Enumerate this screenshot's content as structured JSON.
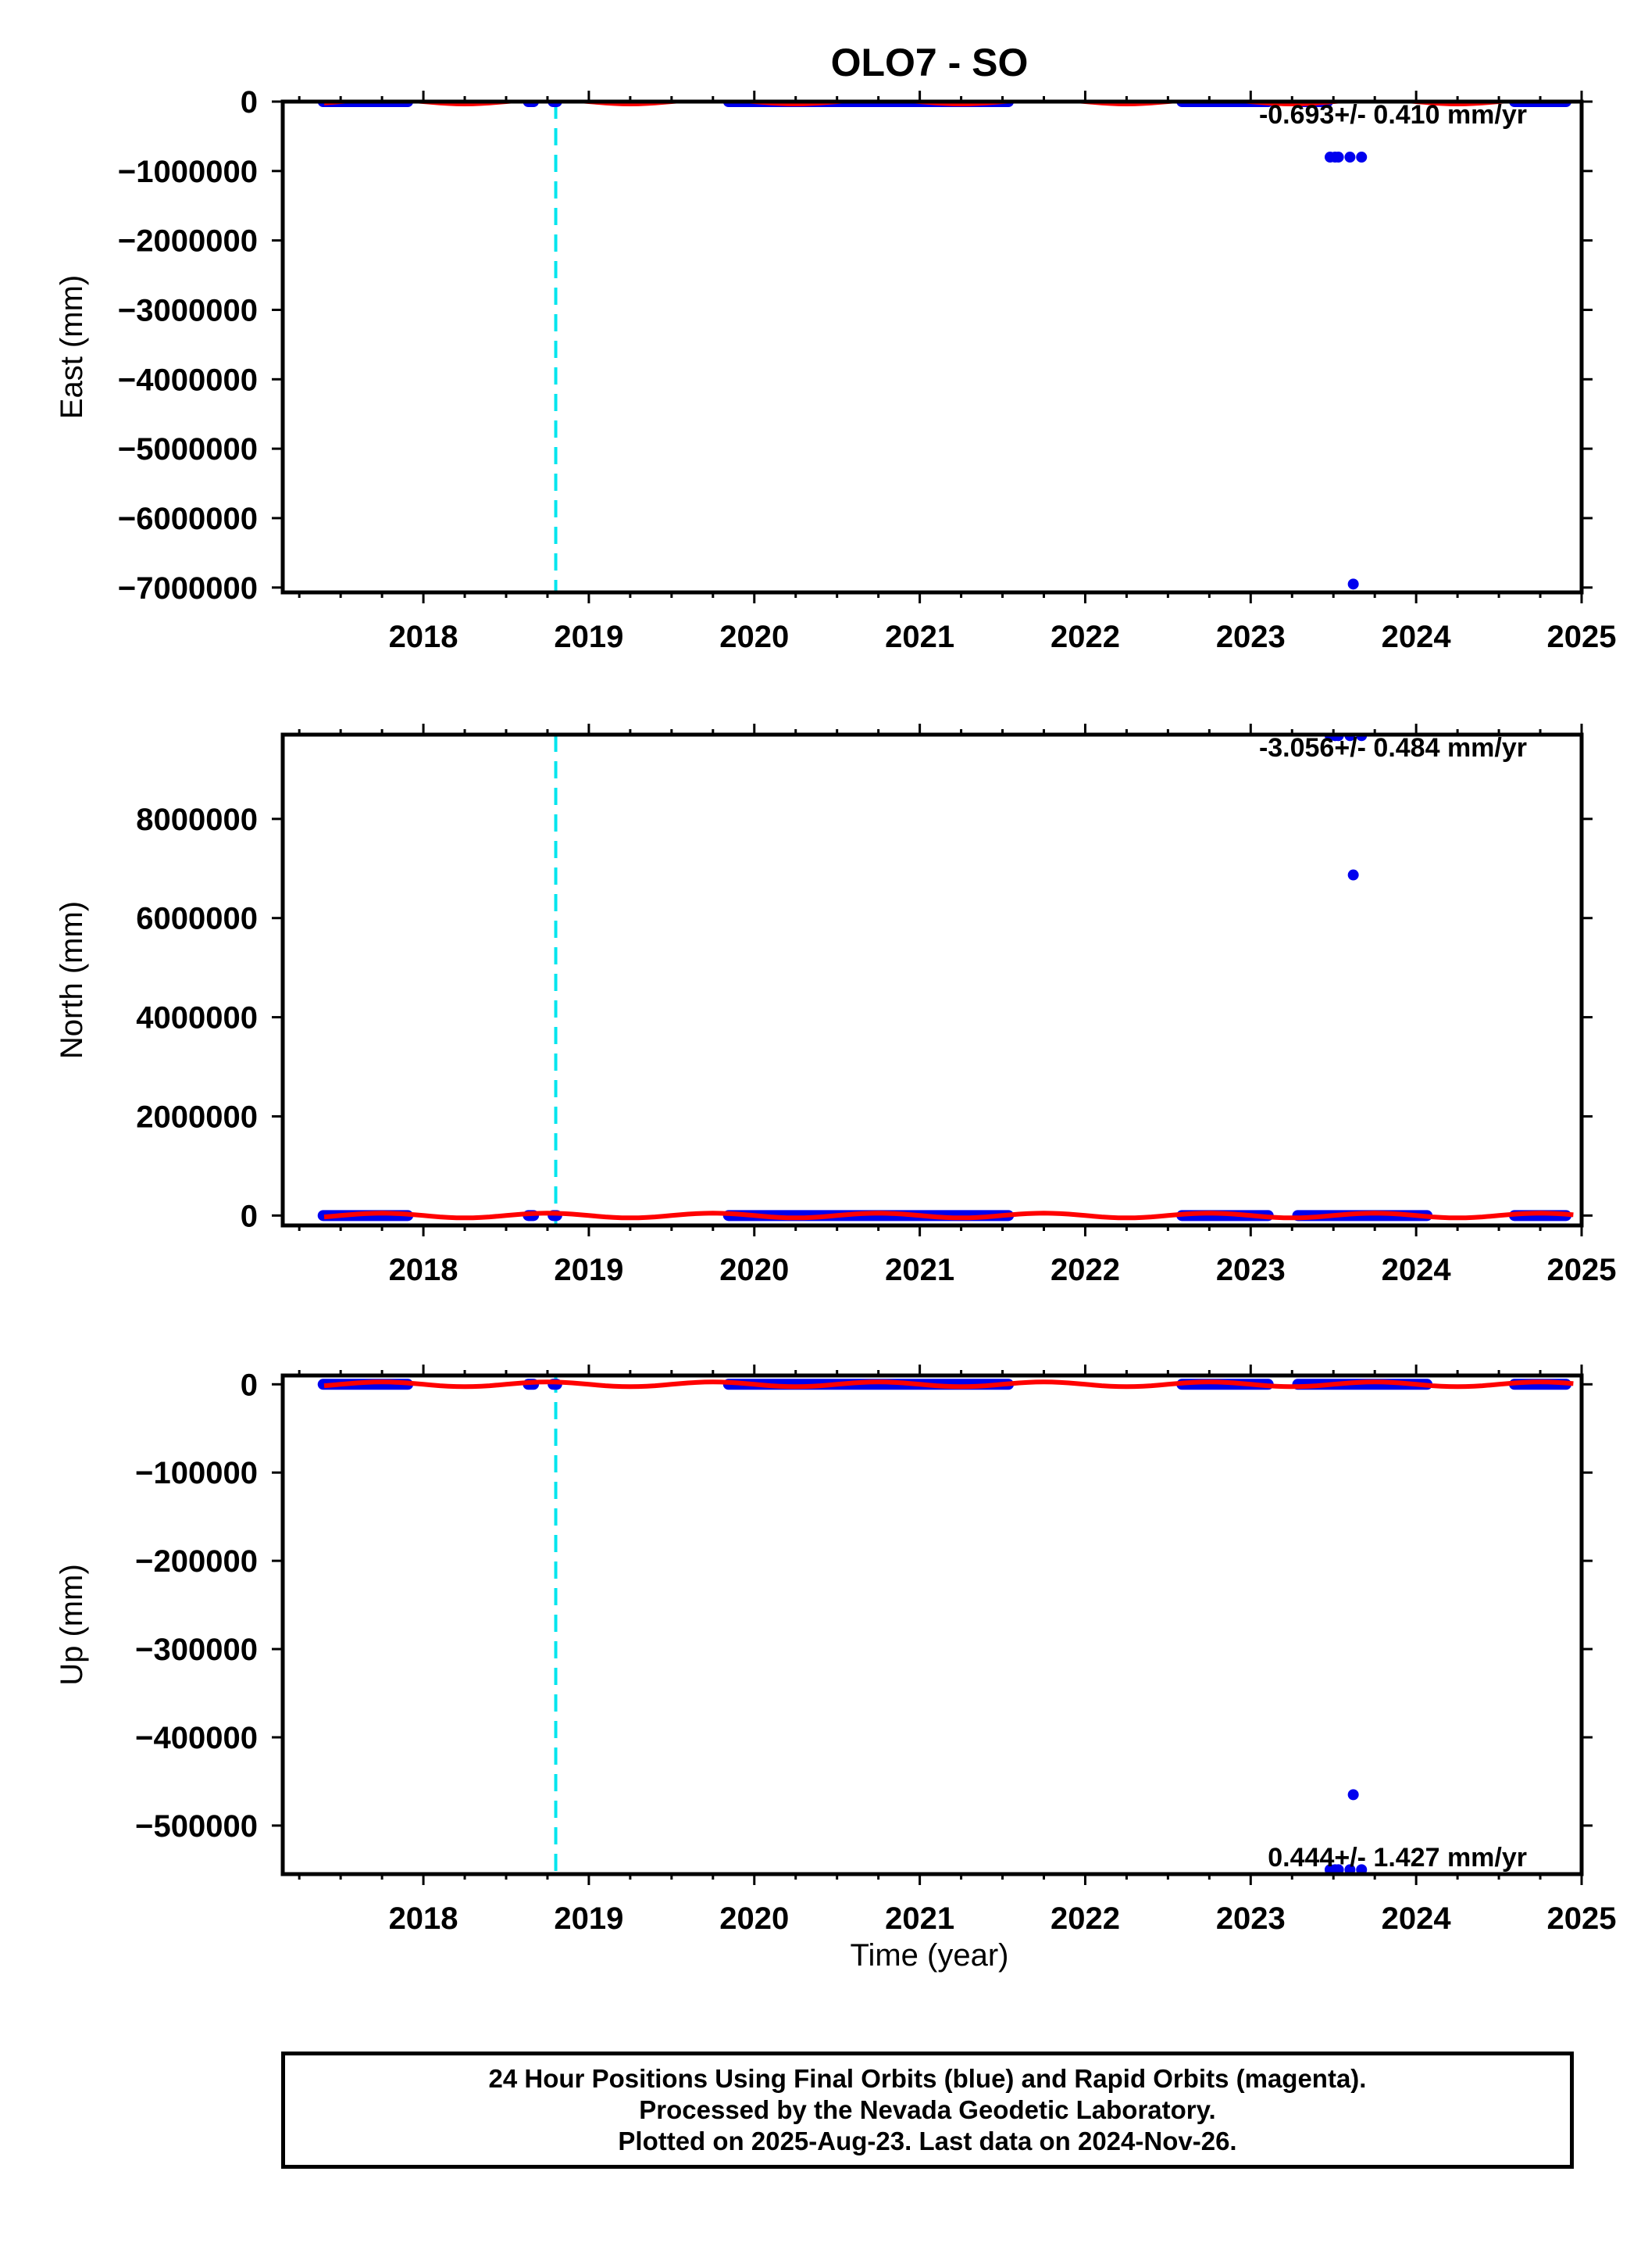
{
  "chart_data": {
    "type": "scatter",
    "title": "OLO7 - SO",
    "x_range": [
      2017.15,
      2025.0
    ],
    "x_ticks": [
      2018,
      2019,
      2020,
      2021,
      2022,
      2023,
      2024,
      2025
    ],
    "xlabel": "Time (year)",
    "event_line_x": 2018.8,
    "colors": {
      "final_orbits": "#0000ee",
      "rapid_orbits": "#ff00ff",
      "model": "#ff0000",
      "event": "#00e5ee"
    },
    "panels": [
      {
        "component": "East",
        "ylabel": "East (mm)",
        "ylim": [
          -7070000,
          0
        ],
        "y_ticks": [
          0,
          -1000000,
          -2000000,
          -3000000,
          -4000000,
          -5000000,
          -6000000,
          -7000000
        ],
        "y_tick_labels": [
          "0",
          "−1000000",
          "−2000000",
          "−3000000",
          "−4000000",
          "−5000000",
          "−6000000",
          "−7000000"
        ],
        "rate_text": "-0.693+/- 0.410 mm/yr",
        "data_segments": [
          [
            2017.38,
            2017.92
          ],
          [
            2018.62,
            2018.68
          ],
          [
            2018.77,
            2018.82
          ],
          [
            2019.83,
            2021.55
          ],
          [
            2022.57,
            2023.12
          ],
          [
            2023.27,
            2023.48
          ],
          [
            2024.58,
            2024.92
          ]
        ],
        "outliers": [
          {
            "x": 2023.48,
            "y": -800000
          },
          {
            "x": 2023.51,
            "y": -800000
          },
          {
            "x": 2023.53,
            "y": -800000
          },
          {
            "x": 2023.6,
            "y": -800000
          },
          {
            "x": 2023.67,
            "y": -800000
          },
          {
            "x": 2023.62,
            "y": -6950000
          }
        ]
      },
      {
        "component": "North",
        "ylabel": "North (mm)",
        "ylim": [
          -200000,
          9700000
        ],
        "y_ticks": [
          0,
          2000000,
          4000000,
          6000000,
          8000000
        ],
        "y_tick_labels": [
          "0",
          "2000000",
          "4000000",
          "6000000",
          "8000000"
        ],
        "rate_text": "-3.056+/- 0.484 mm/yr",
        "data_segments": [
          [
            2017.38,
            2017.92
          ],
          [
            2018.62,
            2018.68
          ],
          [
            2018.77,
            2018.82
          ],
          [
            2019.83,
            2021.55
          ],
          [
            2022.57,
            2023.12
          ],
          [
            2023.27,
            2024.08
          ],
          [
            2024.58,
            2024.92
          ]
        ],
        "outliers": [
          {
            "x": 2023.48,
            "y": 9680000
          },
          {
            "x": 2023.51,
            "y": 9680000
          },
          {
            "x": 2023.53,
            "y": 9680000
          },
          {
            "x": 2023.6,
            "y": 9680000
          },
          {
            "x": 2023.67,
            "y": 9680000
          },
          {
            "x": 2023.62,
            "y": 6870000
          }
        ]
      },
      {
        "component": "Up",
        "ylabel": "Up (mm)",
        "ylim": [
          -555000,
          10000
        ],
        "y_ticks": [
          0,
          -100000,
          -200000,
          -300000,
          -400000,
          -500000
        ],
        "y_tick_labels": [
          "0",
          "−100000",
          "−200000",
          "−300000",
          "−400000",
          "−500000"
        ],
        "rate_text": "0.444+/- 1.427 mm/yr",
        "data_segments": [
          [
            2017.38,
            2017.92
          ],
          [
            2018.62,
            2018.68
          ],
          [
            2018.77,
            2018.82
          ],
          [
            2019.83,
            2021.55
          ],
          [
            2022.57,
            2023.12
          ],
          [
            2023.27,
            2024.08
          ],
          [
            2024.58,
            2024.92
          ]
        ],
        "outliers": [
          {
            "x": 2023.48,
            "y": -550000
          },
          {
            "x": 2023.51,
            "y": -550000
          },
          {
            "x": 2023.53,
            "y": -550000
          },
          {
            "x": 2023.6,
            "y": -550000
          },
          {
            "x": 2023.67,
            "y": -550000
          },
          {
            "x": 2023.62,
            "y": -465000
          }
        ]
      }
    ]
  },
  "footer": {
    "line1": "24 Hour Positions Using Final Orbits (blue) and Rapid Orbits (magenta).",
    "line2": "Processed by the Nevada Geodetic Laboratory.",
    "line3": "Plotted on 2025-Aug-23. Last data on 2024-Nov-26."
  }
}
